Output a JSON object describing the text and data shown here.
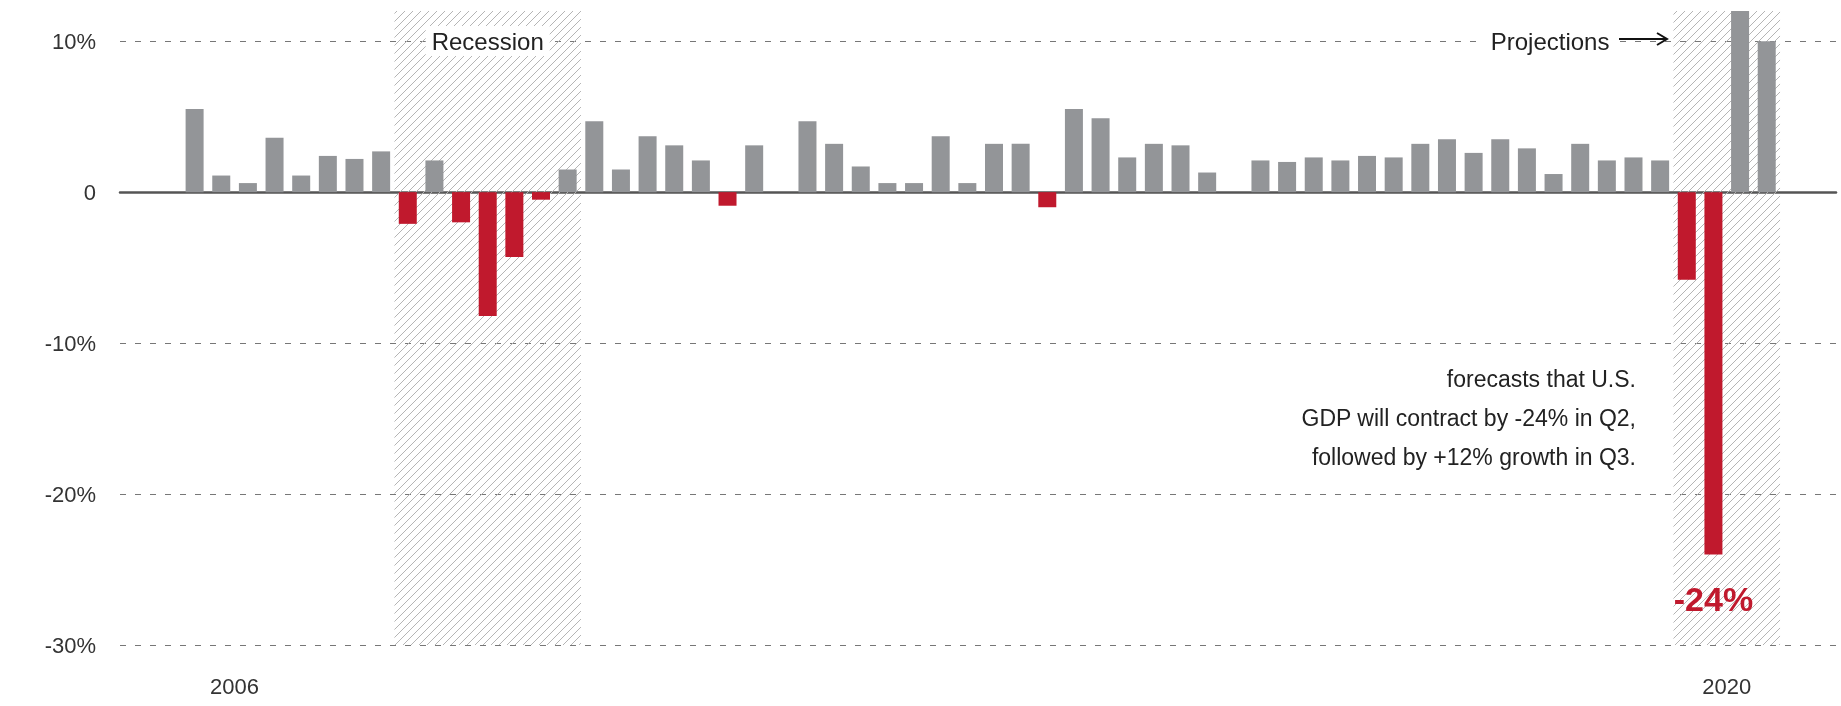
{
  "chart_data": {
    "type": "bar",
    "x": [
      2006,
      2006.25,
      2006.5,
      2006.75,
      2007,
      2007.25,
      2007.5,
      2007.75,
      2008,
      2008.25,
      2008.5,
      2008.75,
      2009,
      2009.25,
      2009.5,
      2009.75,
      2010,
      2010.25,
      2010.5,
      2010.75,
      2011,
      2011.25,
      2011.5,
      2011.75,
      2012,
      2012.25,
      2012.5,
      2012.75,
      2013,
      2013.25,
      2013.5,
      2013.75,
      2014,
      2014.25,
      2014.5,
      2014.75,
      2015,
      2015.25,
      2015.5,
      2015.75,
      2016,
      2016.25,
      2016.5,
      2016.75,
      2017,
      2017.25,
      2017.5,
      2017.75,
      2018,
      2018.25,
      2018.5,
      2018.75,
      2019,
      2019.25,
      2019.5,
      2019.75,
      2020,
      2020.25,
      2020.5,
      2020.75
    ],
    "values": [
      5.5,
      1.1,
      0.6,
      3.6,
      1.1,
      2.4,
      2.2,
      2.7,
      -2.1,
      2.1,
      -2.0,
      -8.2,
      -4.3,
      -0.5,
      1.5,
      4.7,
      1.5,
      3.7,
      3.1,
      2.1,
      -0.9,
      3.1,
      null,
      4.7,
      3.2,
      1.7,
      0.6,
      0.6,
      3.7,
      0.6,
      3.2,
      3.2,
      -1.0,
      5.5,
      4.9,
      2.3,
      3.2,
      3.1,
      1.3,
      null,
      2.1,
      2.0,
      2.3,
      2.1,
      2.4,
      2.3,
      3.2,
      3.5,
      2.6,
      3.5,
      2.9,
      1.2,
      3.2,
      2.1,
      2.3,
      2.1,
      -5.8,
      -24,
      12,
      10
    ],
    "colors": [
      "#939598",
      "#939598",
      "#939598",
      "#939598",
      "#939598",
      "#939598",
      "#939598",
      "#939598",
      "#c0192d",
      "#939598",
      "#c0192d",
      "#c0192d",
      "#c0192d",
      "#c0192d",
      "#939598",
      "#939598",
      "#939598",
      "#939598",
      "#939598",
      "#939598",
      "#c0192d",
      "#939598",
      "#939598",
      "#939598",
      "#939598",
      "#939598",
      "#939598",
      "#939598",
      "#939598",
      "#939598",
      "#939598",
      "#939598",
      "#c0192d",
      "#939598",
      "#939598",
      "#939598",
      "#939598",
      "#939598",
      "#939598",
      "#939598",
      "#939598",
      "#939598",
      "#939598",
      "#939598",
      "#939598",
      "#939598",
      "#939598",
      "#939598",
      "#939598",
      "#939598",
      "#939598",
      "#939598",
      "#939598",
      "#939598",
      "#939598",
      "#939598",
      "#c0192d",
      "#c0192d",
      "#939598",
      "#939598"
    ],
    "value_labels": [
      null,
      null,
      null,
      null,
      null,
      null,
      null,
      null,
      null,
      null,
      null,
      null,
      null,
      null,
      null,
      null,
      null,
      null,
      null,
      null,
      null,
      null,
      null,
      null,
      null,
      null,
      null,
      null,
      null,
      null,
      null,
      null,
      null,
      null,
      null,
      null,
      null,
      null,
      null,
      null,
      null,
      null,
      null,
      null,
      null,
      null,
      null,
      null,
      null,
      null,
      null,
      null,
      null,
      null,
      null,
      null,
      null,
      "-24%",
      null,
      null
    ],
    "xlim": [
      2005.3,
      2021.4
    ],
    "xticks": [
      {
        "value": 2006.375,
        "label": "2006"
      },
      {
        "value": 2020.375,
        "label": "2020"
      }
    ],
    "ylim": [
      -30,
      12
    ],
    "yticks": [
      {
        "value": -30,
        "label": "-30%"
      },
      {
        "value": -20,
        "label": "-20%"
      },
      {
        "value": -10,
        "label": "-10%"
      },
      0,
      {
        "value": 10,
        "label": "10%"
      }
    ],
    "grid": "y",
    "bands": [
      {
        "axis": "x",
        "from": 2007.875,
        "to": 2009.625,
        "label": "Recession"
      },
      {
        "axis": "x",
        "from": 2019.875,
        "to": 2020.875,
        "label": "Projections"
      }
    ],
    "annotations": [
      "forecasts that U.S.\nGDP will contract by -24% in Q2,\nfollowed by +12% growth in Q3."
    ]
  }
}
